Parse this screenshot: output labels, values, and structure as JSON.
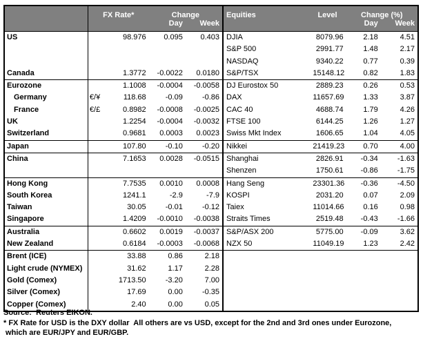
{
  "colors": {
    "header_bg": "#808080",
    "header_text": "#FFFFFF",
    "border": "#000000",
    "body_bg": "#FFFFFF"
  },
  "chart_data": {
    "type": "table",
    "headers": {
      "fx_rate": "FX Rate*",
      "change": "Change",
      "day": "Day",
      "week": "Week",
      "equities": "Equities",
      "level": "Level",
      "change_pct": "Change (%)"
    },
    "rows": [
      {
        "g": false,
        "ind": false,
        "fx": [
          "US",
          "",
          "98.976",
          "0.095",
          "0.403"
        ],
        "eq": [
          "DJIA",
          "8079.96",
          "2.18",
          "4.51"
        ]
      },
      {
        "g": false,
        "ind": false,
        "fx": [
          "",
          "",
          "",
          "",
          ""
        ],
        "eq": [
          "S&P 500",
          "2991.77",
          "1.48",
          "2.17"
        ]
      },
      {
        "g": false,
        "ind": false,
        "fx": [
          "",
          "",
          "",
          "",
          ""
        ],
        "eq": [
          "NASDAQ",
          "9340.22",
          "0.77",
          "0.39"
        ]
      },
      {
        "g": false,
        "ind": false,
        "fx": [
          "Canada",
          "",
          "1.3772",
          "-0.0022",
          "0.0180"
        ],
        "eq": [
          "S&P/TSX",
          "15148.12",
          "0.82",
          "1.83"
        ]
      },
      {
        "g": true,
        "ind": false,
        "fx": [
          "Eurozone",
          "",
          "1.1008",
          "-0.0004",
          "-0.0058"
        ],
        "eq": [
          "DJ Eurostox 50",
          "2889.23",
          "0.26",
          "0.53"
        ]
      },
      {
        "g": false,
        "ind": true,
        "fx": [
          "Germany",
          "€/¥",
          "118.68",
          "-0.09",
          "-0.86"
        ],
        "eq": [
          "DAX",
          "11657.69",
          "1.33",
          "3.87"
        ]
      },
      {
        "g": false,
        "ind": true,
        "fx": [
          "France",
          "€/£",
          "0.8982",
          "-0.0008",
          "-0.0025"
        ],
        "eq": [
          "CAC 40",
          "4688.74",
          "1.79",
          "4.26"
        ]
      },
      {
        "g": false,
        "ind": false,
        "fx": [
          "UK",
          "",
          "1.2254",
          "-0.0004",
          "-0.0032"
        ],
        "eq": [
          "FTSE 100",
          "6144.25",
          "1.26",
          "1.27"
        ]
      },
      {
        "g": false,
        "ind": false,
        "fx": [
          "Switzerland",
          "",
          "0.9681",
          "0.0003",
          "0.0023"
        ],
        "eq": [
          "Swiss Mkt Index",
          "1606.65",
          "1.04",
          "4.05"
        ]
      },
      {
        "g": true,
        "ind": false,
        "fx": [
          "Japan",
          "",
          "107.80",
          "-0.10",
          "-0.20"
        ],
        "eq": [
          "Nikkei",
          "21419.23",
          "0.70",
          "4.00"
        ]
      },
      {
        "g": true,
        "ind": false,
        "fx": [
          "China",
          "",
          "7.1653",
          "0.0028",
          "-0.0515"
        ],
        "eq": [
          "Shanghai",
          "2826.91",
          "-0.34",
          "-1.63"
        ]
      },
      {
        "g": false,
        "ind": false,
        "fx": [
          "",
          "",
          "",
          "",
          ""
        ],
        "eq": [
          "Shenzen",
          "1750.61",
          "-0.86",
          "-1.75"
        ]
      },
      {
        "g": true,
        "ind": false,
        "fx": [
          "Hong Kong",
          "",
          "7.7535",
          "0.0010",
          "0.0008"
        ],
        "eq": [
          "Hang Seng",
          "23301.36",
          "-0.36",
          "-4.50"
        ]
      },
      {
        "g": false,
        "ind": false,
        "fx": [
          "South Korea",
          "",
          "1241.1",
          "-2.9",
          "-7.9"
        ],
        "eq": [
          "KOSPI",
          "2031.20",
          "0.07",
          "2.09"
        ]
      },
      {
        "g": false,
        "ind": false,
        "fx": [
          "Taiwan",
          "",
          "30.05",
          "-0.01",
          "-0.12"
        ],
        "eq": [
          "Taiex",
          "11014.66",
          "0.16",
          "0.98"
        ]
      },
      {
        "g": false,
        "ind": false,
        "fx": [
          "Singapore",
          "",
          "1.4209",
          "-0.0010",
          "-0.0038"
        ],
        "eq": [
          "Straits Times",
          "2519.48",
          "-0.43",
          "-1.66"
        ]
      },
      {
        "g": true,
        "ind": false,
        "fx": [
          "Australia",
          "",
          "0.6602",
          "0.0019",
          "-0.0037"
        ],
        "eq": [
          "S&P/ASX  200",
          "5775.00",
          "-0.09",
          "3.62"
        ]
      },
      {
        "g": false,
        "ind": false,
        "fx": [
          "New Zealand",
          "",
          "0.6184",
          "-0.0003",
          "-0.0068"
        ],
        "eq": [
          "NZX 50",
          "11049.19",
          "1.23",
          "2.42"
        ]
      },
      {
        "g": true,
        "ind": false,
        "fx": [
          "Brent (ICE)",
          "",
          "33.88",
          "0.86",
          "2.18"
        ],
        "eq": [
          "",
          "",
          "",
          ""
        ]
      },
      {
        "g": false,
        "ind": false,
        "fx": [
          "Light crude (NYMEX)",
          "",
          "31.62",
          "1.17",
          "2.28"
        ],
        "eq": [
          "",
          "",
          "",
          ""
        ]
      },
      {
        "g": false,
        "ind": false,
        "fx": [
          "Gold (Comex)",
          "",
          "1713.50",
          "-3.20",
          "7.00"
        ],
        "eq": [
          "",
          "",
          "",
          ""
        ]
      },
      {
        "g": false,
        "ind": false,
        "fx": [
          "Silver (Comex)",
          "",
          "17.69",
          "0.00",
          "-0.35"
        ],
        "eq": [
          "",
          "",
          "",
          ""
        ]
      },
      {
        "g": false,
        "ind": false,
        "fx": [
          "Copper (Comex)",
          "",
          "2.40",
          "0.00",
          "0.05"
        ],
        "eq": [
          "",
          "",
          "",
          ""
        ]
      }
    ]
  },
  "footer": {
    "source": "Source:  Reuters EIKON.",
    "note1": "* FX Rate for USD is the DXY dollar  All others are vs USD, except for the 2nd and 3rd ones under Eurozone,",
    "note2": " which are EUR/JPY and EUR/GBP."
  }
}
